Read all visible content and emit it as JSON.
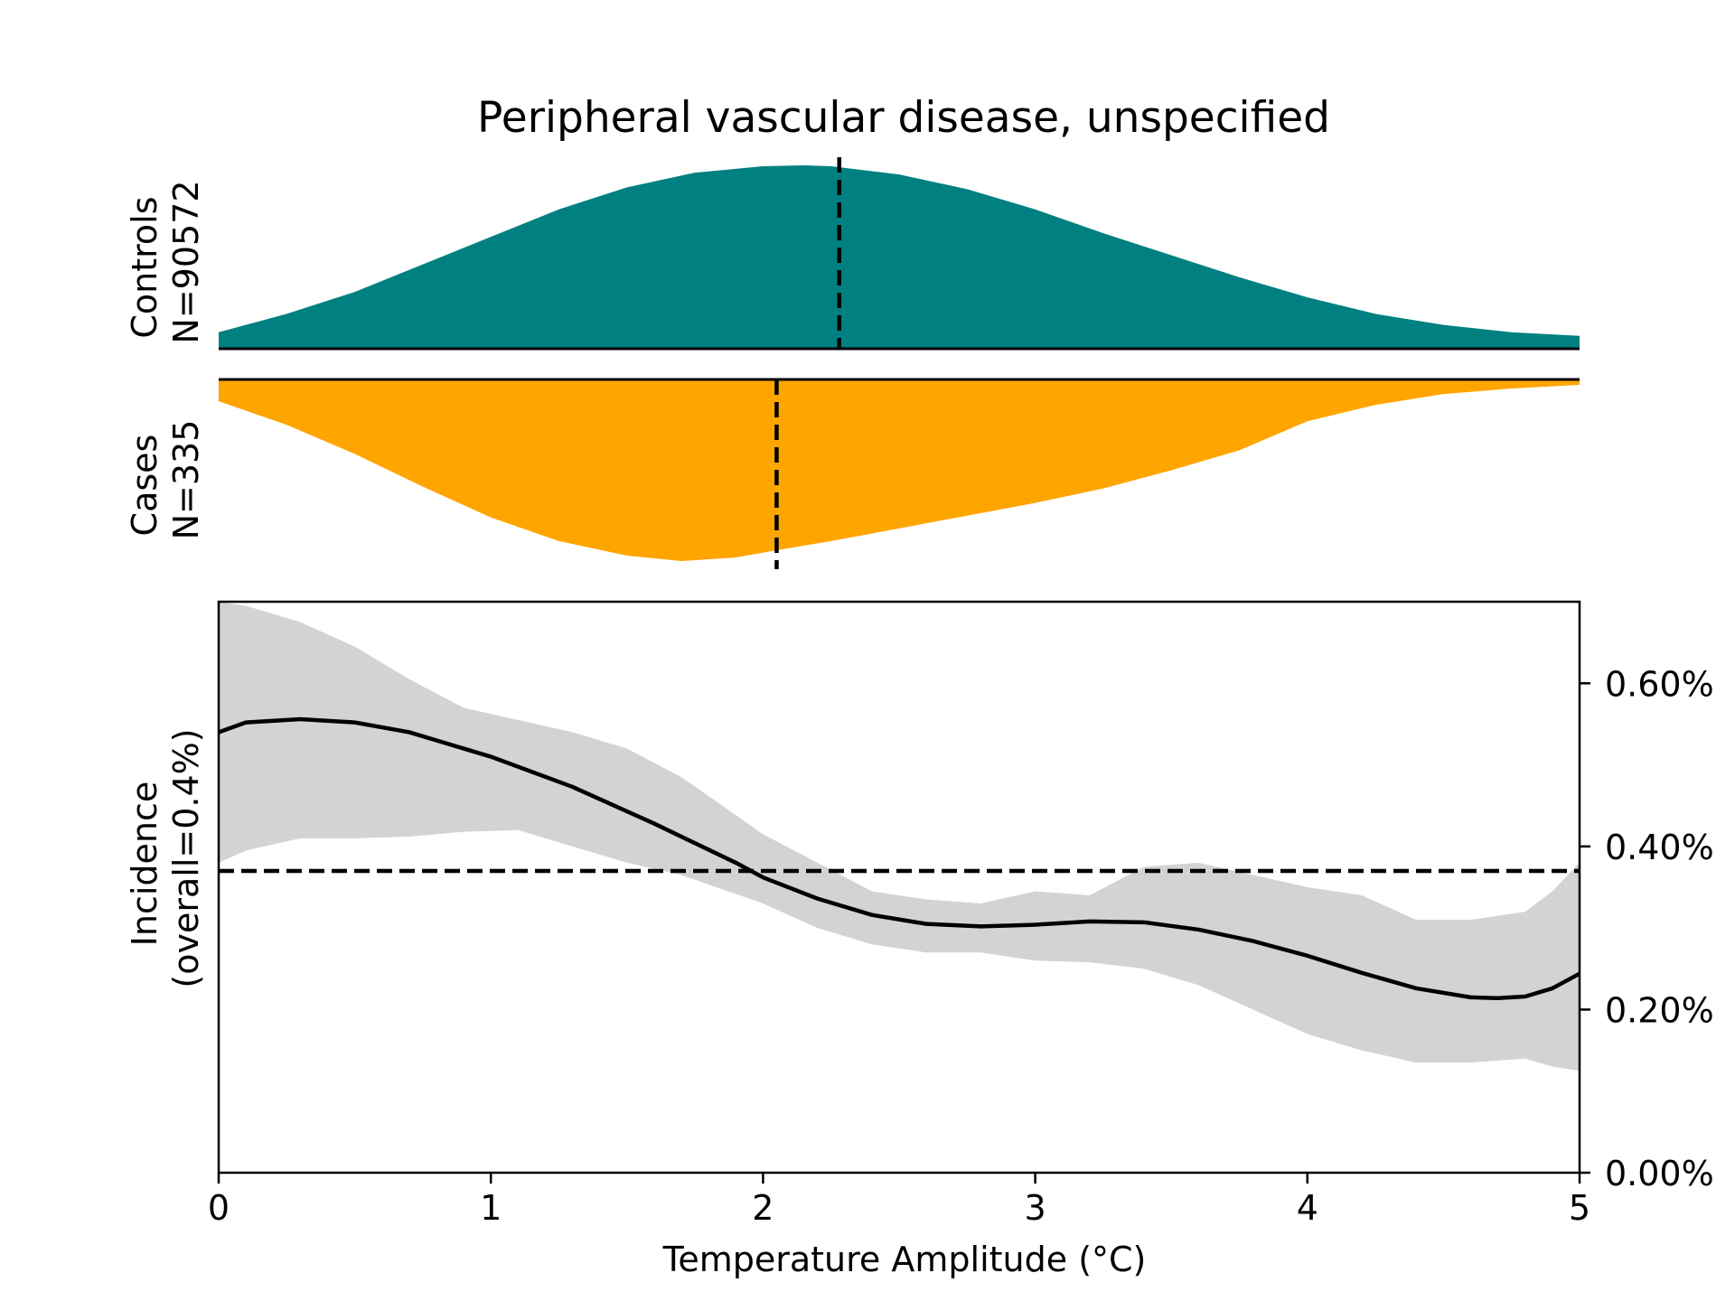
{
  "chart_data": {
    "type": "area",
    "title": "Peripheral vascular disease, unspecified",
    "xlabel": "Temperature Amplitude (°C)",
    "xlim": [
      0,
      5
    ],
    "x_ticks": [
      "0",
      "1",
      "2",
      "3",
      "4",
      "5"
    ],
    "panels": {
      "controls": {
        "label_line1": "Controls",
        "label_line2": "N=90572",
        "color": "#008080",
        "mean_x": 2.28,
        "density": {
          "x": [
            0,
            0.25,
            0.5,
            0.75,
            1.0,
            1.25,
            1.5,
            1.75,
            2.0,
            2.15,
            2.25,
            2.5,
            2.75,
            3.0,
            3.25,
            3.5,
            3.75,
            4.0,
            4.25,
            4.5,
            4.75,
            5.0
          ],
          "y": [
            0.09,
            0.19,
            0.31,
            0.46,
            0.61,
            0.76,
            0.88,
            0.96,
            0.995,
            1.0,
            0.995,
            0.95,
            0.87,
            0.76,
            0.63,
            0.51,
            0.39,
            0.28,
            0.19,
            0.13,
            0.09,
            0.07
          ]
        }
      },
      "cases": {
        "label_line1": "Cases",
        "label_line2": "N=335",
        "color": "#FFA500",
        "mean_x": 2.05,
        "density": {
          "x": [
            0,
            0.25,
            0.5,
            0.75,
            1.0,
            1.25,
            1.5,
            1.7,
            1.9,
            2.05,
            2.25,
            2.5,
            2.75,
            3.0,
            3.25,
            3.5,
            3.75,
            4.0,
            4.25,
            4.5,
            4.75,
            5.0
          ],
          "y": [
            0.12,
            0.25,
            0.41,
            0.59,
            0.76,
            0.89,
            0.97,
            1.0,
            0.98,
            0.94,
            0.89,
            0.82,
            0.75,
            0.68,
            0.6,
            0.5,
            0.39,
            0.23,
            0.14,
            0.08,
            0.05,
            0.03
          ]
        }
      }
    },
    "incidence": {
      "ylabel_line1": "Incidence",
      "ylabel_line2": "(overall=0.4%)",
      "ylim": [
        0,
        0.007
      ],
      "y_ticks": [
        {
          "value": 0.0,
          "label": "0.00%"
        },
        {
          "value": 0.002,
          "label": "0.20%"
        },
        {
          "value": 0.004,
          "label": "0.40%"
        },
        {
          "value": 0.006,
          "label": "0.60%"
        }
      ],
      "overall": 0.0037,
      "line": {
        "x": [
          0,
          0.1,
          0.3,
          0.5,
          0.7,
          1.0,
          1.3,
          1.6,
          1.9,
          2.0,
          2.2,
          2.4,
          2.6,
          2.8,
          3.0,
          3.2,
          3.4,
          3.6,
          3.8,
          4.0,
          4.2,
          4.4,
          4.6,
          4.7,
          4.8,
          4.9,
          5.0
        ],
        "y": [
          0.0054,
          0.00552,
          0.00556,
          0.00552,
          0.0054,
          0.0051,
          0.00473,
          0.00428,
          0.0038,
          0.00362,
          0.00336,
          0.00316,
          0.00305,
          0.00302,
          0.00304,
          0.00308,
          0.00307,
          0.00298,
          0.00284,
          0.00266,
          0.00245,
          0.00226,
          0.00215,
          0.00214,
          0.00216,
          0.00226,
          0.00244
        ]
      },
      "band": {
        "x": [
          0,
          0.1,
          0.3,
          0.5,
          0.7,
          0.9,
          1.1,
          1.3,
          1.5,
          1.7,
          2.0,
          2.2,
          2.4,
          2.6,
          2.8,
          3.0,
          3.2,
          3.4,
          3.6,
          3.8,
          4.0,
          4.2,
          4.4,
          4.6,
          4.8,
          4.9,
          5.0
        ],
        "upper": [
          0.007,
          0.00695,
          0.00675,
          0.00645,
          0.00605,
          0.0057,
          0.00555,
          0.0054,
          0.0052,
          0.00485,
          0.00415,
          0.0038,
          0.00345,
          0.00335,
          0.0033,
          0.00345,
          0.0034,
          0.00375,
          0.0038,
          0.00365,
          0.0035,
          0.0034,
          0.0031,
          0.0031,
          0.0032,
          0.00345,
          0.0038
        ],
        "lower": [
          0.0038,
          0.00395,
          0.0041,
          0.0041,
          0.00412,
          0.00418,
          0.0042,
          0.004,
          0.0038,
          0.00365,
          0.0033,
          0.003,
          0.0028,
          0.0027,
          0.0027,
          0.0026,
          0.00258,
          0.0025,
          0.0023,
          0.002,
          0.0017,
          0.0015,
          0.00135,
          0.00135,
          0.0014,
          0.0013,
          0.00125
        ]
      },
      "band_color": "#d3d3d3"
    }
  }
}
